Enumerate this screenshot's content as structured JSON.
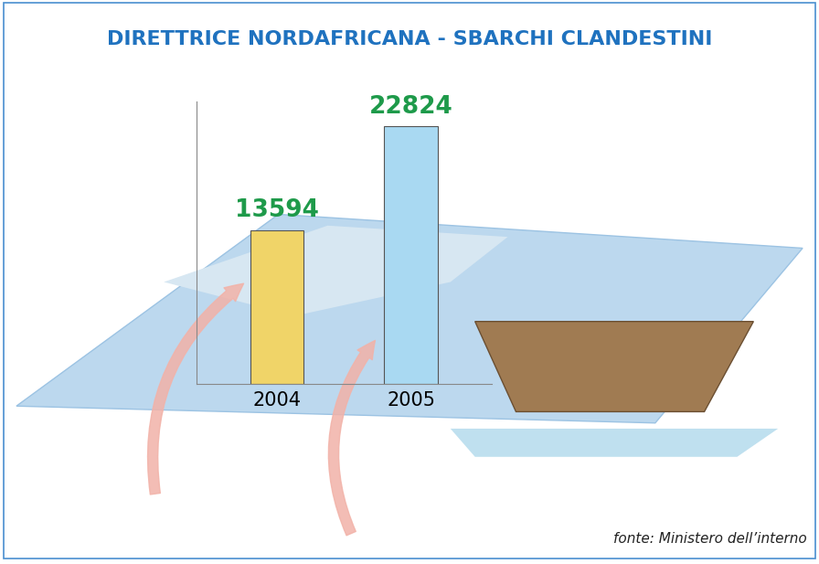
{
  "chart_data": {
    "type": "bar",
    "title": "DIRETTRICE NORDAFRICANA - SBARCHI CLANDESTINI",
    "source": "fonte: Ministero dell’interno",
    "categories": [
      "2004",
      "2005"
    ],
    "values": [
      13594,
      22824
    ],
    "colors": [
      "#f0d468",
      "#a9d9f2"
    ],
    "ylim": [
      0,
      25000
    ],
    "data_labels": true,
    "tick_labels": "x",
    "grid": false
  }
}
